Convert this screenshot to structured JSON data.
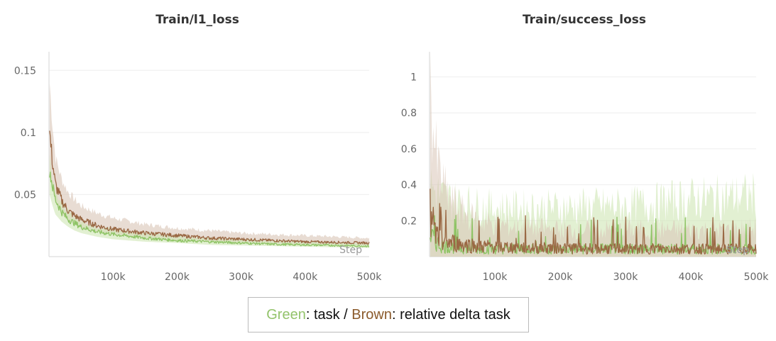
{
  "legend": {
    "green_word": "Green",
    "green_rest": ": task / ",
    "brown_word": "Brown",
    "brown_rest": ": relative delta task"
  },
  "colors": {
    "green": "#8fc466",
    "green_band": "#cfe6b4",
    "brown": "#9a6844",
    "brown_band": "#d9c4b6",
    "grid": "#eeeeee",
    "axis": "#dddddd"
  },
  "chart_data": [
    {
      "type": "line",
      "title": "Train/l1_loss",
      "xlabel": "Step",
      "ylabel": "",
      "xlim": [
        0,
        500000
      ],
      "ylim": [
        0.0,
        0.165
      ],
      "xticks": [
        100000,
        200000,
        300000,
        400000,
        500000
      ],
      "xtick_labels": [
        "100k",
        "200k",
        "300k",
        "400k",
        "500k"
      ],
      "yticks": [
        0.05,
        0.1,
        0.15
      ],
      "ytick_labels": [
        "0.05",
        "0.1",
        "0.15"
      ],
      "grid": true,
      "series": [
        {
          "name": "task",
          "color": "green",
          "x": [
            1000,
            5000,
            10000,
            20000,
            30000,
            40000,
            50000,
            75000,
            100000,
            150000,
            200000,
            250000,
            300000,
            350000,
            400000,
            450000,
            500000
          ],
          "values": [
            0.07,
            0.058,
            0.046,
            0.036,
            0.03,
            0.027,
            0.024,
            0.02,
            0.018,
            0.015,
            0.013,
            0.012,
            0.011,
            0.01,
            0.0095,
            0.009,
            0.0085
          ],
          "band_low": [
            0.05,
            0.042,
            0.034,
            0.028,
            0.024,
            0.021,
            0.019,
            0.016,
            0.014,
            0.012,
            0.011,
            0.0095,
            0.009,
            0.0085,
            0.008,
            0.0075,
            0.007
          ],
          "band_high": [
            0.08,
            0.066,
            0.054,
            0.043,
            0.036,
            0.032,
            0.029,
            0.024,
            0.022,
            0.019,
            0.017,
            0.015,
            0.014,
            0.013,
            0.012,
            0.0115,
            0.011
          ]
        },
        {
          "name": "relative delta task",
          "color": "brown",
          "x": [
            1000,
            5000,
            10000,
            20000,
            30000,
            40000,
            50000,
            75000,
            100000,
            150000,
            200000,
            250000,
            300000,
            350000,
            400000,
            450000,
            500000
          ],
          "values": [
            0.1,
            0.078,
            0.058,
            0.045,
            0.037,
            0.033,
            0.03,
            0.025,
            0.022,
            0.019,
            0.017,
            0.015,
            0.014,
            0.013,
            0.012,
            0.0115,
            0.011
          ],
          "band_low": [
            0.07,
            0.055,
            0.044,
            0.034,
            0.029,
            0.026,
            0.023,
            0.02,
            0.018,
            0.015,
            0.013,
            0.012,
            0.011,
            0.0105,
            0.01,
            0.0095,
            0.009
          ],
          "band_high": [
            0.14,
            0.11,
            0.08,
            0.062,
            0.052,
            0.046,
            0.041,
            0.035,
            0.031,
            0.026,
            0.023,
            0.021,
            0.019,
            0.018,
            0.017,
            0.016,
            0.015
          ]
        }
      ]
    },
    {
      "type": "line",
      "title": "Train/success_loss",
      "xlabel": "Step",
      "ylabel": "",
      "xlim": [
        0,
        500000
      ],
      "ylim": [
        0.0,
        1.14
      ],
      "xticks": [
        100000,
        200000,
        300000,
        400000,
        500000
      ],
      "xtick_labels": [
        "100k",
        "200k",
        "300k",
        "400k",
        "500k"
      ],
      "yticks": [
        0.2,
        0.4,
        0.6,
        0.8,
        1.0
      ],
      "ytick_labels": [
        "0.2",
        "0.4",
        "0.6",
        "0.8",
        "1"
      ],
      "grid": true,
      "series": [
        {
          "name": "task",
          "color": "green",
          "x": [
            1000,
            5000,
            10000,
            20000,
            30000,
            50000,
            75000,
            100000,
            150000,
            200000,
            250000,
            300000,
            350000,
            400000,
            450000,
            500000
          ],
          "values": [
            0.12,
            0.1,
            0.08,
            0.06,
            0.055,
            0.05,
            0.045,
            0.045,
            0.045,
            0.04,
            0.045,
            0.045,
            0.045,
            0.045,
            0.04,
            0.045
          ],
          "band_low": [
            0.0,
            0.0,
            0.0,
            0.0,
            0.0,
            0.0,
            0.0,
            0.0,
            0.0,
            0.0,
            0.0,
            0.0,
            0.0,
            0.0,
            0.0,
            0.0
          ],
          "band_high": [
            0.4,
            0.38,
            0.36,
            0.33,
            0.32,
            0.3,
            0.28,
            0.27,
            0.27,
            0.27,
            0.28,
            0.28,
            0.3,
            0.32,
            0.33,
            0.34
          ]
        },
        {
          "name": "relative delta task",
          "color": "brown",
          "x": [
            1000,
            5000,
            10000,
            20000,
            30000,
            50000,
            75000,
            100000,
            150000,
            200000,
            250000,
            300000,
            350000,
            400000,
            450000,
            500000
          ],
          "values": [
            0.2,
            0.15,
            0.12,
            0.09,
            0.08,
            0.07,
            0.06,
            0.055,
            0.05,
            0.05,
            0.045,
            0.045,
            0.045,
            0.045,
            0.045,
            0.045
          ],
          "band_low": [
            0.0,
            0.0,
            0.0,
            0.0,
            0.0,
            0.0,
            0.0,
            0.0,
            0.0,
            0.0,
            0.0,
            0.0,
            0.0,
            0.0,
            0.0,
            0.0
          ],
          "band_high": [
            0.98,
            0.75,
            0.55,
            0.4,
            0.32,
            0.25,
            0.2,
            0.18,
            0.16,
            0.15,
            0.15,
            0.15,
            0.15,
            0.15,
            0.15,
            0.16
          ]
        }
      ]
    }
  ]
}
